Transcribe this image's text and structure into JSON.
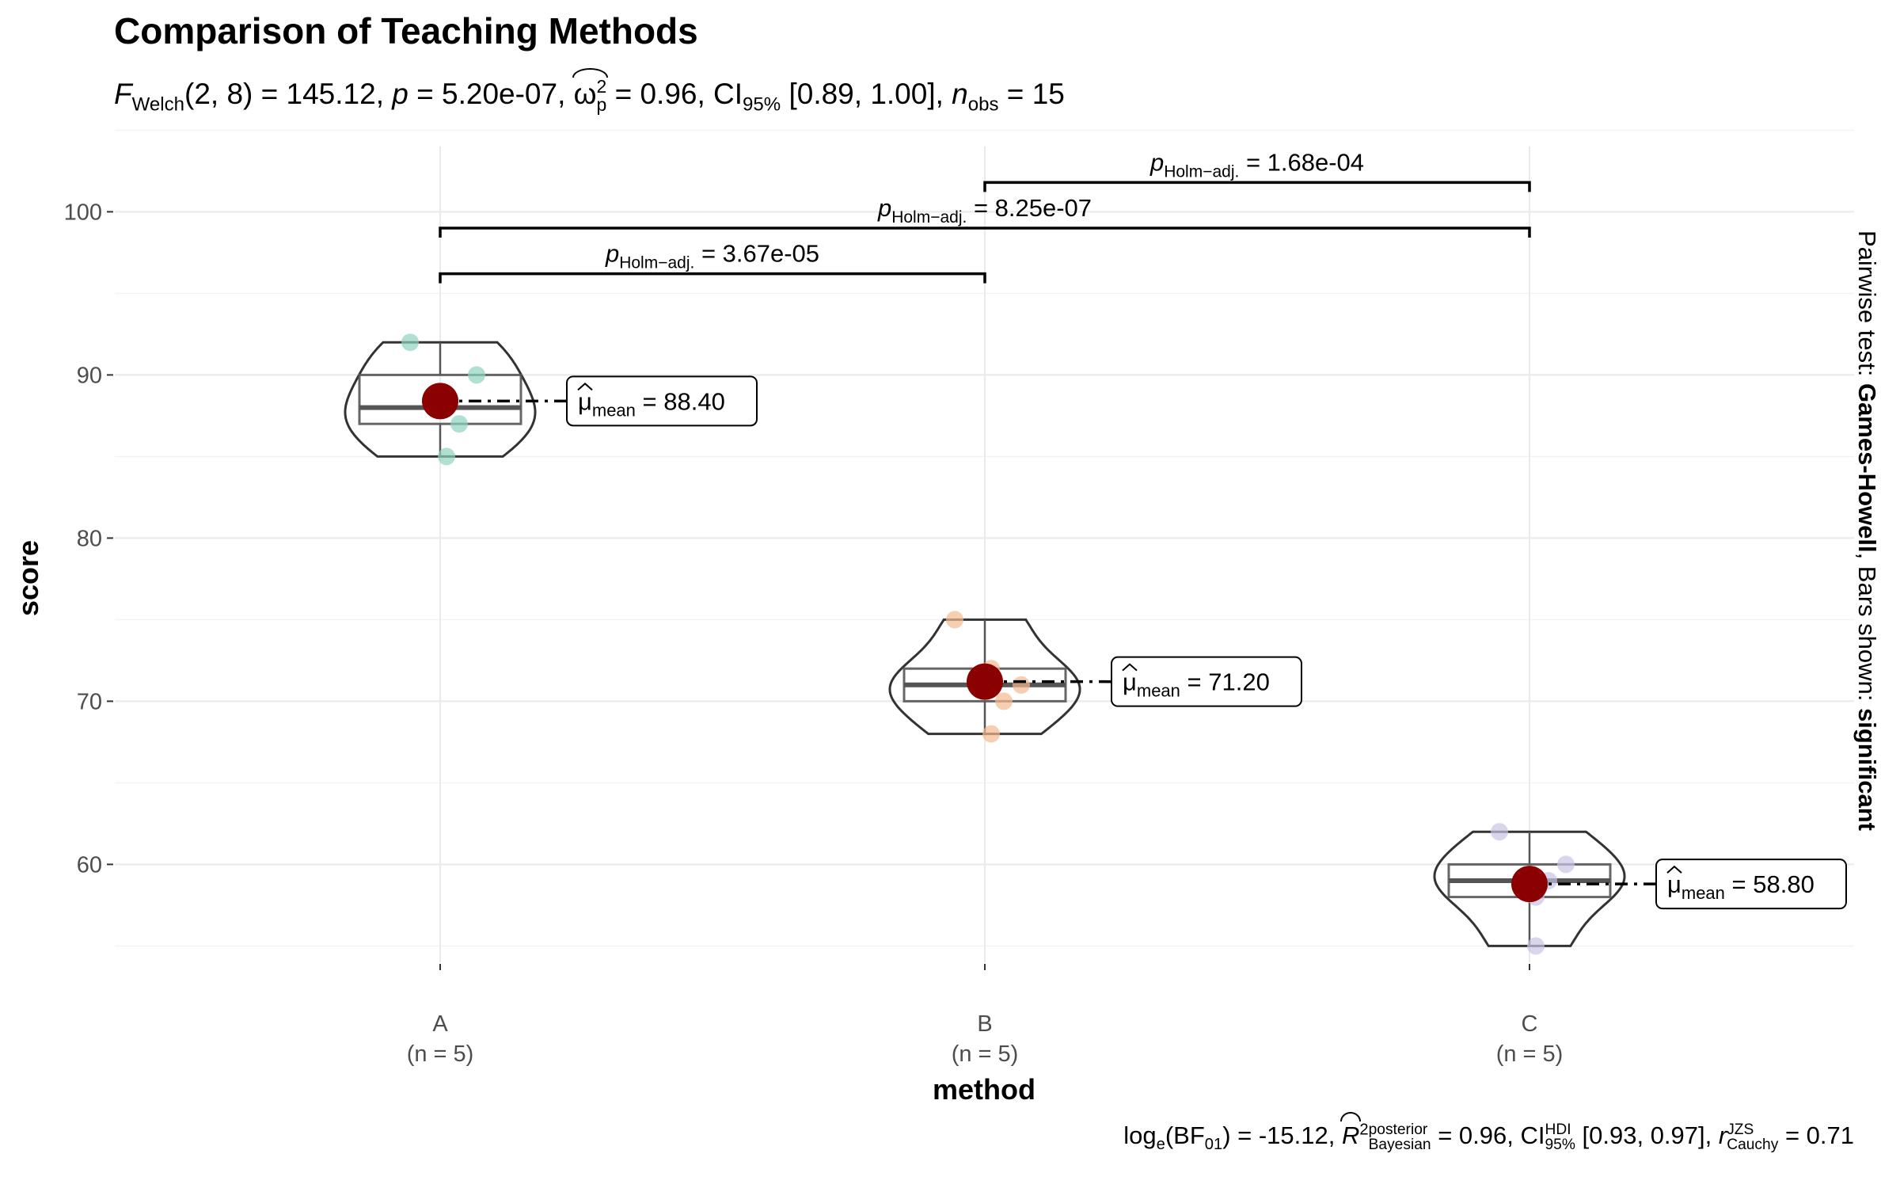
{
  "chart_data": {
    "type": "violin",
    "title": "Comparison of Teaching Methods",
    "subtitle": {
      "stat_symbol": "F",
      "stat_sub": "Welch",
      "df": "(2, 8)",
      "stat_value": " = 145.12, ",
      "p_symbol": "p",
      "p_value": " = 5.20e-07, ",
      "es_symbol": "ω",
      "es_sup": "2",
      "es_sub": "p",
      "es_value": " = 0.96, CI",
      "ci_sub": "95%",
      "ci_value": " [0.89, 1.00], ",
      "n_symbol": "n",
      "n_sub": "obs",
      "n_value": " = 15"
    },
    "xlabel": "method",
    "ylabel": "score",
    "ylim": [
      54,
      104
    ],
    "yticks": [
      60,
      70,
      80,
      90,
      100
    ],
    "grid": true,
    "groups": [
      {
        "label": "A",
        "n_label": "(n = 5)",
        "color": "#8fd3bf",
        "points": [
          92,
          90,
          87,
          88,
          85
        ],
        "q1": 87,
        "median": 88,
        "q3": 90,
        "min": 85,
        "max": 92,
        "mean": 88.4,
        "mean_label": "88.40"
      },
      {
        "label": "B",
        "n_label": "(n = 5)",
        "color": "#f4b98f",
        "points": [
          75,
          71,
          70,
          72,
          68
        ],
        "q1": 70,
        "median": 71,
        "q3": 72,
        "min": 68,
        "max": 75,
        "mean": 71.2,
        "mean_label": "71.20"
      },
      {
        "label": "C",
        "n_label": "(n = 5)",
        "color": "#c9c3e6",
        "points": [
          62,
          60,
          59,
          58,
          55
        ],
        "q1": 58,
        "median": 59,
        "q3": 60,
        "min": 55,
        "max": 62,
        "mean": 58.8,
        "mean_label": "58.80"
      }
    ],
    "mean_color": "#8b0000",
    "mean_label_prefix": "μ",
    "mean_label_sub": "mean",
    "mean_label_eq": " = ",
    "pairwise": [
      {
        "from": "B",
        "to": "C",
        "y": 101.8,
        "p_value": " = 1.68e-04"
      },
      {
        "from": "A",
        "to": "C",
        "y": 99.0,
        "p_value": " = 8.25e-07"
      },
      {
        "from": "A",
        "to": "B",
        "y": 96.2,
        "p_value": " = 3.67e-05"
      }
    ],
    "pairwise_p_symbol": "p",
    "pairwise_p_sub": "Holm−adj.",
    "side_label": {
      "prefix": "Pairwise test: ",
      "test": "Games-Howell",
      "middle": ", Bars shown: ",
      "shown": "significant"
    },
    "caption": {
      "bf_text": "log",
      "bf_sub": "e",
      "bf_paren": "(BF",
      "bf_paren_sub": "01",
      "bf_value": ") = -15.12, ",
      "r2_symbol": "R",
      "r2_sup": "2",
      "r2_stack_top": "posterior",
      "r2_stack_bottom": "Bayesian",
      "r2_value": " = 0.96, CI",
      "ci_stack_top": "HDI",
      "ci_stack_bottom": "95%",
      "ci_value": " [0.93, 0.97], ",
      "r_symbol": "r",
      "r_stack_top": "JZS",
      "r_stack_bottom": "Cauchy",
      "r_value": " = 0.71"
    }
  }
}
